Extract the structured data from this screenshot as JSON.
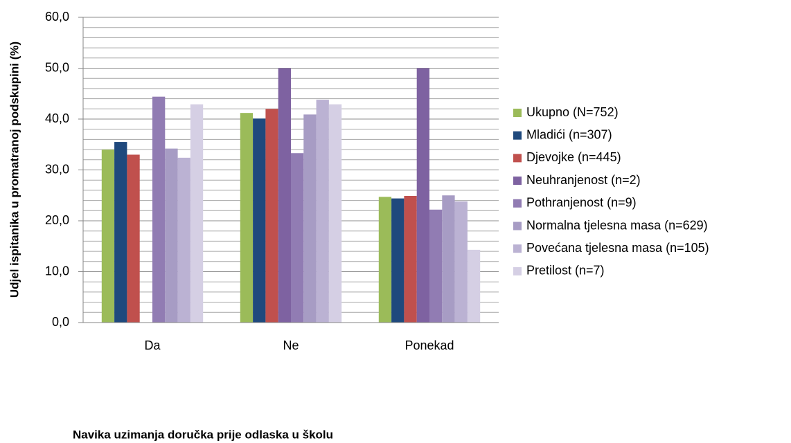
{
  "chart_data": {
    "type": "bar",
    "x_label": "Navika uzimanja doručka prije odlaska u školu",
    "y_label": "Udjel ispitanika u promatranoj podskupini (%)",
    "categories": [
      "Da",
      "Ne",
      "Ponekad"
    ],
    "series": [
      {
        "name": "Ukupno (N=752)",
        "color": "#9bbb59",
        "values": [
          34.0,
          41.2,
          24.7
        ]
      },
      {
        "name": "Mladići (n=307)",
        "color": "#1f497d",
        "values": [
          35.5,
          40.1,
          24.4
        ]
      },
      {
        "name": "Djevojke (n=445)",
        "color": "#c0504d",
        "values": [
          33.0,
          42.0,
          24.9
        ]
      },
      {
        "name": "Neuhranjenost (n=2)",
        "color": "#7e62a1",
        "values": [
          0,
          50.0,
          50.0
        ]
      },
      {
        "name": "Pothranjenost (n=9)",
        "color": "#917cb3",
        "values": [
          44.4,
          33.3,
          22.2
        ]
      },
      {
        "name": "Normalna tjelesna masa (n=629)",
        "color": "#a79cc4",
        "values": [
          34.2,
          40.9,
          25.0
        ]
      },
      {
        "name": "Povećana tjelesna masa (n=105)",
        "color": "#bbb2d3",
        "values": [
          32.4,
          43.8,
          23.8
        ]
      },
      {
        "name": "Pretilost (n=7)",
        "color": "#d5cfe4",
        "values": [
          42.9,
          42.9,
          14.3
        ]
      }
    ],
    "ylim": [
      0,
      60
    ],
    "yticks": [
      {
        "value": 0,
        "label": "0,0"
      },
      {
        "value": 10,
        "label": "10,0"
      },
      {
        "value": 20,
        "label": "20,0"
      },
      {
        "value": 30,
        "label": "30,0"
      },
      {
        "value": 40,
        "label": "40,0"
      },
      {
        "value": 50,
        "label": "50,0"
      },
      {
        "value": 60,
        "label": "60,0"
      }
    ],
    "minor_yticks": [
      2,
      4,
      6,
      8,
      12,
      14,
      16,
      18,
      22,
      24,
      26,
      28,
      32,
      34,
      36,
      38,
      42,
      44,
      46,
      48,
      52,
      54,
      56,
      58
    ],
    "grid": true,
    "legend": "right"
  }
}
